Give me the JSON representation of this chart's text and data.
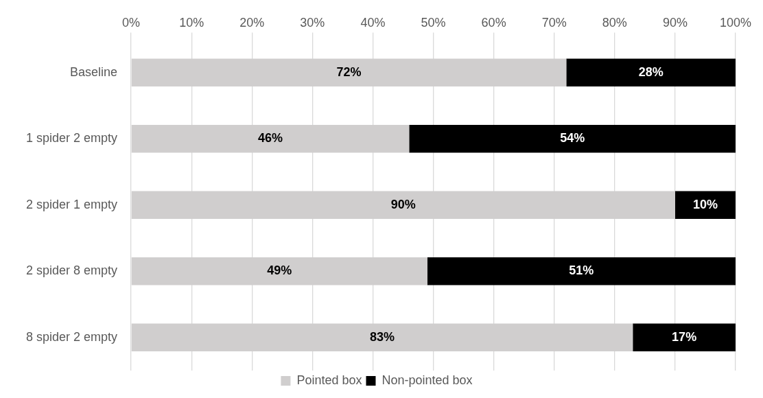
{
  "chart_data": {
    "type": "bar",
    "orientation": "horizontal",
    "stacked": true,
    "categories": [
      "Baseline",
      "1 spider 2 empty",
      "2 spider 1 empty",
      "2 spider 8 empty",
      "8 spider 2 empty"
    ],
    "series": [
      {
        "name": "Pointed box",
        "color": "#d0cece",
        "values": [
          72,
          46,
          90,
          49,
          83
        ],
        "value_labels": [
          "72%",
          "46%",
          "90%",
          "49%",
          "83%"
        ]
      },
      {
        "name": "Non-pointed box",
        "color": "#000000",
        "values": [
          28,
          54,
          10,
          51,
          17
        ],
        "value_labels": [
          "28%",
          "54%",
          "10%",
          "51%",
          "17%"
        ]
      }
    ],
    "xlim": [
      0,
      100
    ],
    "xticks": [
      {
        "value": 0,
        "label": "0%"
      },
      {
        "value": 10,
        "label": "10%"
      },
      {
        "value": 20,
        "label": "20%"
      },
      {
        "value": 30,
        "label": "30%"
      },
      {
        "value": 40,
        "label": "40%"
      },
      {
        "value": 50,
        "label": "50%"
      },
      {
        "value": 60,
        "label": "60%"
      },
      {
        "value": 70,
        "label": "70%"
      },
      {
        "value": 80,
        "label": "80%"
      },
      {
        "value": 90,
        "label": "90%"
      },
      {
        "value": 100,
        "label": "100%"
      }
    ],
    "grid": "x",
    "legend": "bottom"
  }
}
